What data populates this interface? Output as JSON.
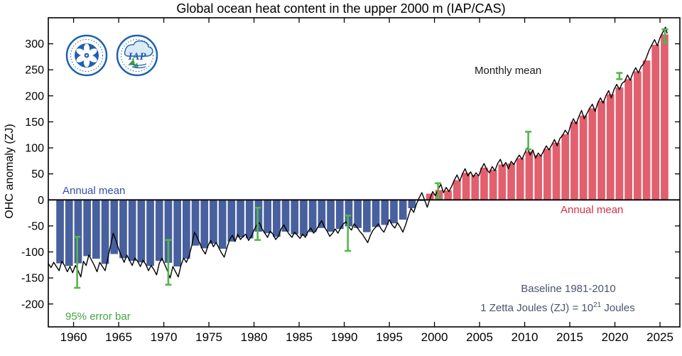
{
  "title": "Global ocean heat content in the upper 2000 m (IAP/CAS)",
  "y_axis_label": "OHC anomaly (ZJ)",
  "annotations": {
    "annual_mean_blue": "Annual mean",
    "monthly_mean": "Monthly mean",
    "annual_mean_red": "Annual mean",
    "baseline": "Baseline 1981-2010",
    "zetta_prefix": "1 Zetta Joules (ZJ) = 10",
    "zetta_sup": "21",
    "zetta_suffix": " Joules",
    "error_bar": "95% error bar"
  },
  "logos": {
    "iap_text": "IAP"
  },
  "colors": {
    "bar_negative": "#48609E",
    "bar_positive": "#E25F6E",
    "monthly_line": "#000000",
    "error_bar": "#55B54F",
    "annual_label_blue": "#3450A8",
    "annual_label_red": "#CC3346",
    "baseline_text": "#4A5470",
    "error_label_green": "#3FA53F",
    "logo_blue": "#2060AE",
    "logo_green": "#3E9B3E"
  },
  "chart_data": {
    "type": "bar",
    "title": "Global ocean heat content in the upper 2000 m (IAP/CAS)",
    "xlabel": "",
    "ylabel": "OHC anomaly (ZJ)",
    "xlim": [
      1957.2,
      2027.2
    ],
    "ylim": [
      -244,
      350
    ],
    "x_ticks": [
      1960,
      1965,
      1970,
      1975,
      1980,
      1985,
      1990,
      1995,
      2000,
      2005,
      2010,
      2015,
      2020,
      2025
    ],
    "y_ticks": [
      -200,
      -150,
      -100,
      -50,
      0,
      50,
      100,
      150,
      200,
      250,
      300
    ],
    "grid": false,
    "legend_position": "none",
    "start_year": 1958,
    "annual_series_name": "Annual mean",
    "annual_values": [
      -122,
      -127,
      -122,
      -108,
      -113,
      -123,
      -104,
      -112,
      -117,
      -120,
      -127,
      -117,
      -121,
      -128,
      -113,
      -88,
      -93,
      -84,
      -94,
      -80,
      -72,
      -74,
      -61,
      -64,
      -71,
      -61,
      -66,
      -69,
      -62,
      -54,
      -61,
      -56,
      -51,
      -54,
      -62,
      -52,
      -48,
      -45,
      -38,
      -16,
      -2,
      12,
      19,
      18,
      38,
      52,
      48,
      62,
      58,
      68,
      70,
      80,
      93,
      86,
      98,
      110,
      126,
      150,
      162,
      176,
      190,
      203,
      216,
      232,
      247,
      268,
      298,
      318
    ],
    "monthly_series_name": "Monthly mean",
    "monthly_line": [
      [
        1957.2,
        -122
      ],
      [
        1957.5,
        -130
      ],
      [
        1957.8,
        -120
      ],
      [
        1958.1,
        -128
      ],
      [
        1958.4,
        -136
      ],
      [
        1958.7,
        -118
      ],
      [
        1959.0,
        -126
      ],
      [
        1959.3,
        -138
      ],
      [
        1959.6,
        -128
      ],
      [
        1959.9,
        -140
      ],
      [
        1960.2,
        -126
      ],
      [
        1960.5,
        -136
      ],
      [
        1960.8,
        -148
      ],
      [
        1961.1,
        -118
      ],
      [
        1961.4,
        -126
      ],
      [
        1961.7,
        -106
      ],
      [
        1962.0,
        -116
      ],
      [
        1962.3,
        -126
      ],
      [
        1962.6,
        -138
      ],
      [
        1962.9,
        -120
      ],
      [
        1963.2,
        -128
      ],
      [
        1963.5,
        -136
      ],
      [
        1963.8,
        -112
      ],
      [
        1964.1,
        -88
      ],
      [
        1964.4,
        -64
      ],
      [
        1964.7,
        -78
      ],
      [
        1965.0,
        -95
      ],
      [
        1965.3,
        -108
      ],
      [
        1965.6,
        -120
      ],
      [
        1965.9,
        -106
      ],
      [
        1966.2,
        -116
      ],
      [
        1966.5,
        -126
      ],
      [
        1966.8,
        -112
      ],
      [
        1967.1,
        -118
      ],
      [
        1967.4,
        -128
      ],
      [
        1967.7,
        -116
      ],
      [
        1968.0,
        -124
      ],
      [
        1968.3,
        -136
      ],
      [
        1968.6,
        -126
      ],
      [
        1968.9,
        -134
      ],
      [
        1969.2,
        -144
      ],
      [
        1969.5,
        -122
      ],
      [
        1969.8,
        -112
      ],
      [
        1970.1,
        -124
      ],
      [
        1970.4,
        -136
      ],
      [
        1970.7,
        -150
      ],
      [
        1971.0,
        -128
      ],
      [
        1971.3,
        -138
      ],
      [
        1971.6,
        -148
      ],
      [
        1971.9,
        -126
      ],
      [
        1972.2,
        -112
      ],
      [
        1972.5,
        -120
      ],
      [
        1972.8,
        -108
      ],
      [
        1973.1,
        -88
      ],
      [
        1973.4,
        -62
      ],
      [
        1973.7,
        -72
      ],
      [
        1974.0,
        -84
      ],
      [
        1974.3,
        -96
      ],
      [
        1974.6,
        -104
      ],
      [
        1974.9,
        -88
      ],
      [
        1975.2,
        -78
      ],
      [
        1975.5,
        -90
      ],
      [
        1975.8,
        -82
      ],
      [
        1976.1,
        -92
      ],
      [
        1976.4,
        -102
      ],
      [
        1976.7,
        -110
      ],
      [
        1977.0,
        -92
      ],
      [
        1977.3,
        -76
      ],
      [
        1977.6,
        -68
      ],
      [
        1977.9,
        -80
      ],
      [
        1978.2,
        -66
      ],
      [
        1978.5,
        -76
      ],
      [
        1978.8,
        -70
      ],
      [
        1979.1,
        -66
      ],
      [
        1979.4,
        -78
      ],
      [
        1979.7,
        -70
      ],
      [
        1980.0,
        -58
      ],
      [
        1980.3,
        -48
      ],
      [
        1980.6,
        -44
      ],
      [
        1980.9,
        -56
      ],
      [
        1981.2,
        -64
      ],
      [
        1981.5,
        -72
      ],
      [
        1981.8,
        -60
      ],
      [
        1982.1,
        -66
      ],
      [
        1982.4,
        -76
      ],
      [
        1982.7,
        -70
      ],
      [
        1983.0,
        -56
      ],
      [
        1983.3,
        -48
      ],
      [
        1983.6,
        -58
      ],
      [
        1983.9,
        -66
      ],
      [
        1984.2,
        -72
      ],
      [
        1984.5,
        -62
      ],
      [
        1984.8,
        -68
      ],
      [
        1985.1,
        -74
      ],
      [
        1985.4,
        -66
      ],
      [
        1985.7,
        -72
      ],
      [
        1986.0,
        -60
      ],
      [
        1986.3,
        -54
      ],
      [
        1986.6,
        -64
      ],
      [
        1986.9,
        -58
      ],
      [
        1987.2,
        -48
      ],
      [
        1987.5,
        -40
      ],
      [
        1987.8,
        -52
      ],
      [
        1988.1,
        -60
      ],
      [
        1988.4,
        -70
      ],
      [
        1988.7,
        -64
      ],
      [
        1989.0,
        -56
      ],
      [
        1989.3,
        -64
      ],
      [
        1989.6,
        -54
      ],
      [
        1989.9,
        -46
      ],
      [
        1990.2,
        -42
      ],
      [
        1990.5,
        -52
      ],
      [
        1990.8,
        -58
      ],
      [
        1991.1,
        -46
      ],
      [
        1991.4,
        -52
      ],
      [
        1991.7,
        -60
      ],
      [
        1992.0,
        -66
      ],
      [
        1992.3,
        -74
      ],
      [
        1992.6,
        -82
      ],
      [
        1992.9,
        -68
      ],
      [
        1993.2,
        -58
      ],
      [
        1993.5,
        -52
      ],
      [
        1993.8,
        -46
      ],
      [
        1994.1,
        -56
      ],
      [
        1994.4,
        -62
      ],
      [
        1994.7,
        -50
      ],
      [
        1995.0,
        -38
      ],
      [
        1995.3,
        -48
      ],
      [
        1995.6,
        -54
      ],
      [
        1995.9,
        -44
      ],
      [
        1996.2,
        -52
      ],
      [
        1996.5,
        -62
      ],
      [
        1996.8,
        -48
      ],
      [
        1997.1,
        -32
      ],
      [
        1997.4,
        -16
      ],
      [
        1997.7,
        -24
      ],
      [
        1998.0,
        -8
      ],
      [
        1998.3,
        4
      ],
      [
        1998.6,
        14
      ],
      [
        1998.9,
        0
      ],
      [
        1999.2,
        -14
      ],
      [
        1999.5,
        2
      ],
      [
        1999.8,
        16
      ],
      [
        2000.1,
        8
      ],
      [
        2000.4,
        20
      ],
      [
        2000.7,
        30
      ],
      [
        2001.0,
        14
      ],
      [
        2001.3,
        24
      ],
      [
        2001.6,
        16
      ],
      [
        2001.9,
        26
      ],
      [
        2002.2,
        38
      ],
      [
        2002.5,
        48
      ],
      [
        2002.8,
        36
      ],
      [
        2003.1,
        50
      ],
      [
        2003.4,
        60
      ],
      [
        2003.7,
        46
      ],
      [
        2004.0,
        54
      ],
      [
        2004.3,
        44
      ],
      [
        2004.6,
        52
      ],
      [
        2004.9,
        46
      ],
      [
        2005.2,
        60
      ],
      [
        2005.5,
        70
      ],
      [
        2005.8,
        58
      ],
      [
        2006.1,
        52
      ],
      [
        2006.4,
        64
      ],
      [
        2006.7,
        56
      ],
      [
        2007.0,
        70
      ],
      [
        2007.3,
        78
      ],
      [
        2007.6,
        64
      ],
      [
        2007.9,
        72
      ],
      [
        2008.2,
        60
      ],
      [
        2008.5,
        74
      ],
      [
        2008.8,
        68
      ],
      [
        2009.1,
        78
      ],
      [
        2009.4,
        86
      ],
      [
        2009.7,
        78
      ],
      [
        2010.0,
        90
      ],
      [
        2010.3,
        100
      ],
      [
        2010.6,
        86
      ],
      [
        2010.9,
        96
      ],
      [
        2011.2,
        80
      ],
      [
        2011.5,
        90
      ],
      [
        2011.8,
        84
      ],
      [
        2012.1,
        94
      ],
      [
        2012.4,
        104
      ],
      [
        2012.7,
        96
      ],
      [
        2013.0,
        106
      ],
      [
        2013.3,
        116
      ],
      [
        2013.6,
        104
      ],
      [
        2013.9,
        118
      ],
      [
        2014.2,
        124
      ],
      [
        2014.5,
        134
      ],
      [
        2014.8,
        126
      ],
      [
        2015.1,
        144
      ],
      [
        2015.4,
        156
      ],
      [
        2015.7,
        146
      ],
      [
        2016.0,
        160
      ],
      [
        2016.3,
        172
      ],
      [
        2016.6,
        156
      ],
      [
        2016.9,
        166
      ],
      [
        2017.2,
        176
      ],
      [
        2017.5,
        184
      ],
      [
        2017.8,
        170
      ],
      [
        2018.1,
        186
      ],
      [
        2018.4,
        196
      ],
      [
        2018.7,
        186
      ],
      [
        2019.0,
        200
      ],
      [
        2019.3,
        210
      ],
      [
        2019.6,
        196
      ],
      [
        2019.9,
        212
      ],
      [
        2020.2,
        222
      ],
      [
        2020.5,
        212
      ],
      [
        2020.8,
        224
      ],
      [
        2021.1,
        228
      ],
      [
        2021.4,
        240
      ],
      [
        2021.7,
        230
      ],
      [
        2022.0,
        244
      ],
      [
        2022.3,
        254
      ],
      [
        2022.6,
        244
      ],
      [
        2022.9,
        256
      ],
      [
        2023.2,
        262
      ],
      [
        2023.5,
        274
      ],
      [
        2023.8,
        288
      ],
      [
        2024.1,
        298
      ],
      [
        2024.4,
        308
      ],
      [
        2024.7,
        296
      ],
      [
        2025.0,
        312
      ],
      [
        2025.3,
        322
      ],
      [
        2025.6,
        332
      ],
      [
        2025.8,
        320
      ]
    ],
    "error_bars_name": "95% error bar",
    "error_bars": [
      {
        "x": 1960.4,
        "center": -120,
        "half": 49
      },
      {
        "x": 1970.5,
        "center": -120,
        "half": 43
      },
      {
        "x": 1980.4,
        "center": -46,
        "half": 31
      },
      {
        "x": 1990.4,
        "center": -64,
        "half": 34
      },
      {
        "x": 2000.4,
        "center": 18,
        "half": 14
      },
      {
        "x": 2010.4,
        "center": 114,
        "half": 17
      },
      {
        "x": 2020.5,
        "center": 238,
        "half": 6
      },
      {
        "x": 2025.55,
        "center": 315,
        "half": 13
      }
    ]
  }
}
